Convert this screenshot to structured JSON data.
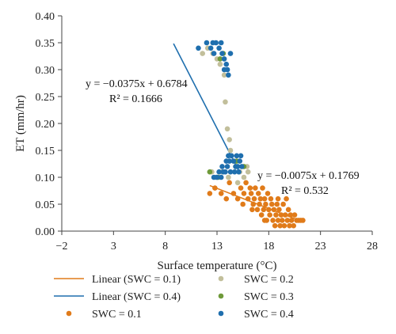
{
  "chart_data": {
    "type": "scatter",
    "xlabel": "Surface temperature (°C)",
    "ylabel": "ET (mm/hr)",
    "xlim": [
      -2,
      28
    ],
    "ylim": [
      0,
      0.4
    ],
    "x_ticks": [
      -2,
      3,
      8,
      13,
      18,
      23,
      28
    ],
    "y_ticks": [
      0.0,
      0.05,
      0.1,
      0.15,
      0.2,
      0.25,
      0.3,
      0.35,
      0.4
    ],
    "x_tick_labels": [
      "−2",
      "3",
      "8",
      "13",
      "18",
      "23",
      "28"
    ],
    "y_tick_labels": [
      "0.00",
      "0.05",
      "0.10",
      "0.15",
      "0.20",
      "0.25",
      "0.30",
      "0.35",
      "0.40"
    ],
    "grid": false,
    "legend_position": "bottom",
    "series": [
      {
        "name": "SWC = 0.1",
        "color": "#e07b1a",
        "points": [
          [
            12.3,
            0.07
          ],
          [
            12.8,
            0.08
          ],
          [
            13.4,
            0.07
          ],
          [
            13.9,
            0.06
          ],
          [
            14.2,
            0.09
          ],
          [
            14.6,
            0.07
          ],
          [
            15.0,
            0.06
          ],
          [
            15.3,
            0.08
          ],
          [
            15.6,
            0.07
          ],
          [
            15.8,
            0.09
          ],
          [
            16.0,
            0.06
          ],
          [
            16.2,
            0.08
          ],
          [
            16.3,
            0.07
          ],
          [
            16.5,
            0.05
          ],
          [
            16.6,
            0.06
          ],
          [
            16.7,
            0.08
          ],
          [
            16.9,
            0.04
          ],
          [
            17.0,
            0.07
          ],
          [
            17.1,
            0.05
          ],
          [
            17.2,
            0.06
          ],
          [
            17.3,
            0.03
          ],
          [
            17.4,
            0.08
          ],
          [
            17.5,
            0.04
          ],
          [
            17.6,
            0.06
          ],
          [
            17.7,
            0.05
          ],
          [
            17.8,
            0.02
          ],
          [
            17.9,
            0.07
          ],
          [
            18.0,
            0.04
          ],
          [
            18.1,
            0.03
          ],
          [
            18.2,
            0.06
          ],
          [
            18.3,
            0.05
          ],
          [
            18.4,
            0.02
          ],
          [
            18.5,
            0.04
          ],
          [
            18.6,
            0.01
          ],
          [
            18.7,
            0.03
          ],
          [
            18.8,
            0.05
          ],
          [
            18.9,
            0.02
          ],
          [
            19.0,
            0.04
          ],
          [
            19.1,
            0.01
          ],
          [
            19.2,
            0.03
          ],
          [
            19.3,
            0.02
          ],
          [
            19.4,
            0.05
          ],
          [
            19.5,
            0.01
          ],
          [
            19.6,
            0.03
          ],
          [
            19.8,
            0.02
          ],
          [
            19.9,
            0.04
          ],
          [
            20.0,
            0.01
          ],
          [
            20.1,
            0.03
          ],
          [
            20.2,
            0.02
          ],
          [
            20.4,
            0.01
          ],
          [
            20.5,
            0.03
          ],
          [
            20.7,
            0.02
          ],
          [
            20.9,
            0.02
          ],
          [
            21.1,
            0.02
          ],
          [
            21.3,
            0.02
          ],
          [
            19.7,
            0.06
          ],
          [
            18.9,
            0.06
          ],
          [
            17.6,
            0.02
          ],
          [
            16.4,
            0.04
          ],
          [
            15.5,
            0.05
          ]
        ]
      },
      {
        "name": "SWC = 0.2",
        "color": "#c2bf9b",
        "points": [
          [
            11.6,
            0.33
          ],
          [
            12.1,
            0.34
          ],
          [
            12.6,
            0.33
          ],
          [
            13.0,
            0.32
          ],
          [
            13.3,
            0.31
          ],
          [
            13.7,
            0.29
          ],
          [
            13.8,
            0.24
          ],
          [
            14.0,
            0.19
          ],
          [
            14.2,
            0.17
          ],
          [
            14.3,
            0.15
          ],
          [
            14.4,
            0.14
          ],
          [
            14.6,
            0.13
          ],
          [
            14.8,
            0.12
          ],
          [
            15.2,
            0.11
          ],
          [
            15.6,
            0.1
          ],
          [
            15.9,
            0.12
          ],
          [
            16.0,
            0.11
          ],
          [
            12.5,
            0.11
          ],
          [
            12.9,
            0.1
          ],
          [
            13.5,
            0.11
          ],
          [
            14.1,
            0.1
          ],
          [
            15.0,
            0.09
          ]
        ]
      },
      {
        "name": "SWC = 0.3",
        "color": "#6f9a3a",
        "points": [
          [
            12.3,
            0.11
          ],
          [
            13.3,
            0.32
          ],
          [
            13.6,
            0.33
          ],
          [
            14.9,
            0.13
          ],
          [
            15.6,
            0.12
          ],
          [
            13.1,
            0.1
          ]
        ]
      },
      {
        "name": "SWC = 0.4",
        "color": "#1f6fae",
        "points": [
          [
            11.2,
            0.34
          ],
          [
            12.0,
            0.35
          ],
          [
            12.4,
            0.34
          ],
          [
            12.6,
            0.35
          ],
          [
            12.9,
            0.35
          ],
          [
            13.2,
            0.34
          ],
          [
            13.4,
            0.35
          ],
          [
            13.5,
            0.33
          ],
          [
            13.7,
            0.32
          ],
          [
            13.9,
            0.31
          ],
          [
            14.0,
            0.3
          ],
          [
            14.1,
            0.29
          ],
          [
            13.7,
            0.3
          ],
          [
            14.3,
            0.33
          ],
          [
            12.7,
            0.33
          ],
          [
            12.7,
            0.1
          ],
          [
            13.0,
            0.1
          ],
          [
            13.4,
            0.1
          ],
          [
            13.6,
            0.11
          ],
          [
            13.8,
            0.11
          ],
          [
            14.0,
            0.12
          ],
          [
            14.2,
            0.13
          ],
          [
            14.4,
            0.14
          ],
          [
            14.6,
            0.13
          ],
          [
            14.8,
            0.12
          ],
          [
            15.0,
            0.12
          ],
          [
            15.2,
            0.13
          ],
          [
            15.4,
            0.12
          ],
          [
            13.9,
            0.13
          ],
          [
            14.7,
            0.11
          ],
          [
            15.1,
            0.11
          ],
          [
            14.3,
            0.11
          ],
          [
            13.5,
            0.12
          ],
          [
            14.1,
            0.14
          ],
          [
            14.9,
            0.14
          ],
          [
            15.3,
            0.14
          ],
          [
            13.2,
            0.11
          ]
        ]
      }
    ],
    "trendlines": [
      {
        "name": "Linear (SWC = 0.1)",
        "color": "#e07b1a",
        "slope": -0.0075,
        "intercept": 0.1769,
        "x_range": [
          12.3,
          21.3
        ],
        "eq_lines": [
          "y = −0.0075x + 0.1769",
          "R² = 0.532"
        ]
      },
      {
        "name": "Linear (SWC = 0.4)",
        "color": "#1f6fae",
        "slope": -0.0375,
        "intercept": 0.6784,
        "x_range": [
          8.8,
          15.1
        ],
        "eq_lines": [
          "y = −0.0375x + 0.6784",
          "R² = 0.1666"
        ]
      }
    ],
    "legend": [
      {
        "label": "Linear (SWC = 0.1)",
        "kind": "line",
        "color": "#e07b1a"
      },
      {
        "label": "SWC = 0.2",
        "kind": "marker",
        "color": "#c2bf9b"
      },
      {
        "label": "Linear (SWC = 0.4)",
        "kind": "line",
        "color": "#1f6fae"
      },
      {
        "label": "SWC = 0.3",
        "kind": "marker",
        "color": "#6f9a3a"
      },
      {
        "label": "SWC = 0.1",
        "kind": "marker",
        "color": "#e07b1a"
      },
      {
        "label": "SWC = 0.4",
        "kind": "marker",
        "color": "#1f6fae"
      }
    ]
  }
}
